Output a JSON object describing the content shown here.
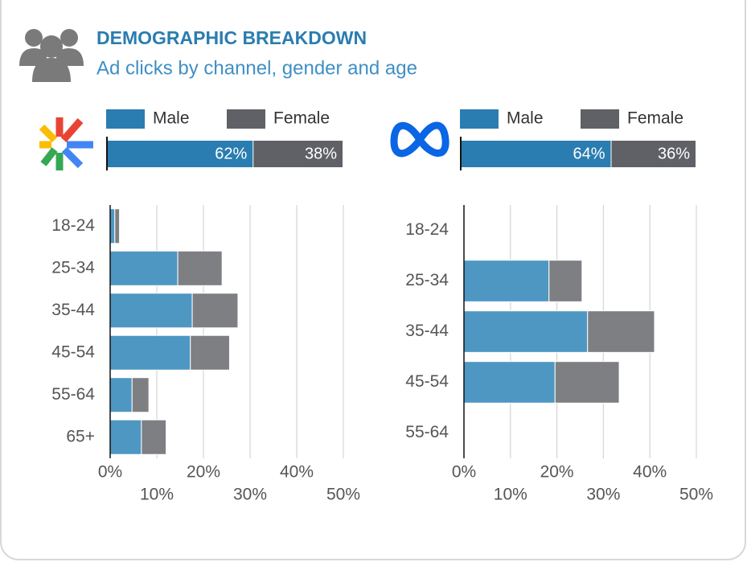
{
  "header": {
    "title": "DEMOGRAPHIC BREAKDOWN",
    "subtitle": "Ad clicks by channel, gender and age"
  },
  "chart_data": [
    {
      "type": "bar",
      "horizontal": true,
      "stacked": true,
      "summary": {
        "values": [
          62,
          38
        ],
        "value_labels": [
          "62%",
          "38%"
        ],
        "colors": [
          "#2a7db0",
          "#5f6166"
        ]
      },
      "categories": [
        "18-24",
        "25-34",
        "35-44",
        "45-54",
        "55-64",
        "65+"
      ],
      "series": [
        {
          "name": "Male",
          "color": "#4e97c3",
          "values": [
            1,
            14.5,
            17.6,
            17.2,
            4.7,
            6.7
          ]
        },
        {
          "name": "Female",
          "color": "#7e7f83",
          "values": [
            1,
            9.5,
            9.8,
            8.4,
            3.6,
            5.3
          ]
        }
      ],
      "xlim": [
        0,
        50
      ],
      "xticks": [
        {
          "value": 0,
          "label": "0%"
        },
        {
          "value": 10,
          "label": "10%"
        },
        {
          "value": 20,
          "label": "20%"
        },
        {
          "value": 30,
          "label": "30%"
        },
        {
          "value": 40,
          "label": "40%"
        },
        {
          "value": 50,
          "label": "50%"
        }
      ],
      "grid": true
    },
    {
      "type": "bar",
      "horizontal": true,
      "stacked": true,
      "summary": {
        "values": [
          64,
          36
        ],
        "value_labels": [
          "64%",
          "36%"
        ],
        "colors": [
          "#2a7db0",
          "#5f6166"
        ]
      },
      "categories": [
        "18-24",
        "25-34",
        "35-44",
        "45-54",
        "55-64"
      ],
      "series": [
        {
          "name": "Male",
          "color": "#4e97c3",
          "values": [
            0,
            18.3,
            26.6,
            19.6,
            0
          ]
        },
        {
          "name": "Female",
          "color": "#7e7f83",
          "values": [
            0,
            7.1,
            14.4,
            13.8,
            0
          ]
        }
      ],
      "xlim": [
        0,
        50
      ],
      "xticks": [
        {
          "value": 0,
          "label": "0%"
        },
        {
          "value": 10,
          "label": "10%"
        },
        {
          "value": 20,
          "label": "20%"
        },
        {
          "value": 30,
          "label": "30%"
        },
        {
          "value": 40,
          "label": "40%"
        },
        {
          "value": 50,
          "label": "50%"
        }
      ],
      "grid": true
    }
  ]
}
